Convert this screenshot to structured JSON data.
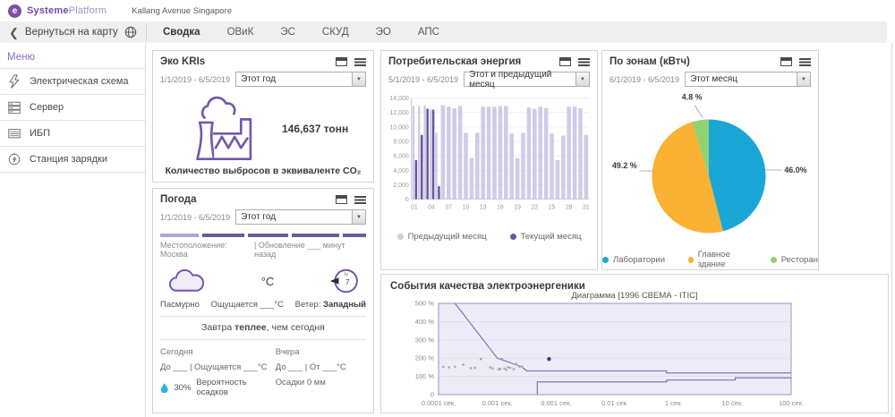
{
  "header": {
    "brand_bold": "Systeme",
    "brand_light": "Platform",
    "location": "Kallang Avenue Singapore",
    "back_label": "Вернуться на карту",
    "tabs": [
      "Сводка",
      "ОВиК",
      "ЭС",
      "СКУД",
      "ЭО",
      "АПС"
    ],
    "active_tab": "Сводка"
  },
  "sidebar": {
    "title": "Меню",
    "items": [
      {
        "label": "Электрическая схема"
      },
      {
        "label": "Сервер"
      },
      {
        "label": "ИБП"
      },
      {
        "label": "Станция зарядки"
      }
    ]
  },
  "cards": {
    "eco": {
      "title": "Эко KRIs",
      "date_range": "1/1/2019 - 6/5/2019",
      "period": "Этот год",
      "value": "146,637 тонн",
      "caption": "Количество выбросов в эквиваленте CO₂"
    },
    "energy": {
      "title": "Потребительская энергия",
      "date_range": "5/1/2019 - 6/5/2019",
      "period": "Этот и предыдущий месяц"
    },
    "zones": {
      "title": "По зонам (кВтч)",
      "date_range": "6/1/2019 - 6/5/2019",
      "period": "Этот месяц"
    },
    "weather": {
      "title": "Погода",
      "date_range": "1/1/2019 - 6/5/2019",
      "period": "Этот год",
      "location": "Местоположение: Москва",
      "update": "| Обновление ___ минут назад",
      "condition": "Пасмурно",
      "temp_unit": "°C",
      "feels": "Ощущается ___°C",
      "wind_label": "Ветер: ",
      "wind_value": "Западный",
      "compass_n": "N",
      "compass_value": "7",
      "tomorrow_pre": "Завтра ",
      "tomorrow_bold": "теплее",
      "tomorrow_post": ", чем сегодня",
      "today_label": "Сегодня",
      "yesterday_label": "Вчера",
      "today_range": "До ___   | Ощущается ___°C",
      "yesterday_range": "До ___   | От ___°C",
      "precip_chance": "30%",
      "precip_label": "Вероятность осадков",
      "precip_yesterday": "Осадки  0  мм"
    },
    "pq": {
      "title": "События качества электроэнергеники"
    }
  },
  "colors": {
    "accent_purple": "#6e4f9e",
    "bar_light": "#d1cbe8",
    "bar_dark": "#69569e",
    "pie_teal": "#1ba7d5",
    "pie_orange": "#f9b233",
    "pie_green": "#90d271",
    "droplet_teal": "#29b6d8"
  },
  "chart_data": [
    {
      "type": "bar",
      "title": "Потребительская энергия",
      "x_tick_labels": [
        "01",
        "04",
        "07",
        "10",
        "13",
        "16",
        "19",
        "22",
        "25",
        "28",
        "31"
      ],
      "y_ticks": [
        "0",
        "2,000",
        "4,000",
        "6,000",
        "8,000",
        "10,000",
        "12,000",
        "14,000"
      ],
      "ylim": [
        0,
        14000
      ],
      "series": [
        {
          "name": "Предыдущий месяц",
          "color": "#d1cbe8",
          "values": [
            12900,
            12850,
            12950,
            12400,
            9200,
            13000,
            12800,
            12600,
            12900,
            9200,
            5700,
            9200,
            12800,
            12800,
            12800,
            12900,
            12900,
            9100,
            5700,
            9200,
            12700,
            12500,
            12800,
            12600,
            9100,
            5400,
            8800,
            12800,
            12800,
            12600,
            8900
          ]
        },
        {
          "name": "Текущий месяц",
          "color": "#69569e",
          "values": [
            5400,
            8900,
            12500,
            12400,
            1800
          ]
        }
      ],
      "legend_position": "bottom"
    },
    {
      "type": "pie",
      "title": "По зонам (кВтч)",
      "slices": [
        {
          "label": "Лаборатории",
          "value": 46.0,
          "display": "46.0%",
          "color": "#1ba7d5"
        },
        {
          "label": "Главное здание",
          "value": 49.2,
          "display": "49.2 %",
          "color": "#f9b233"
        },
        {
          "label": "Ресторан",
          "value": 4.8,
          "display": "4.8 %",
          "color": "#90d271"
        }
      ],
      "legend_position": "bottom"
    },
    {
      "type": "line",
      "title": "Диаграмма [1996 СВЕМА - ITIC]",
      "x_ticks": [
        "0.0001 сек.",
        "0.001 сек.",
        "0.001 сек.",
        "0.01 сек.",
        "1 сек.",
        "10 сек.",
        "100 сек."
      ],
      "y_ticks": [
        "0",
        "100 %",
        "200 %",
        "300 %",
        "400 %",
        "500 %"
      ],
      "ylim": [
        0,
        500
      ],
      "x_axis_units": [
        0,
        6
      ],
      "upper_curve": [
        [
          0.28,
          500
        ],
        [
          1.0,
          200
        ],
        [
          1.42,
          152
        ],
        [
          1.5,
          130
        ],
        [
          3.88,
          130
        ],
        [
          3.88,
          119
        ],
        [
          6,
          119
        ]
      ],
      "lower_curve": [
        [
          1.68,
          0
        ],
        [
          1.68,
          70
        ],
        [
          3.88,
          70
        ],
        [
          3.88,
          80
        ],
        [
          5.05,
          80
        ],
        [
          5.05,
          92
        ],
        [
          6,
          92
        ]
      ],
      "scatter": [
        [
          0.08,
          152
        ],
        [
          0.18,
          150
        ],
        [
          0.28,
          153
        ],
        [
          0.42,
          164
        ],
        [
          0.55,
          145
        ],
        [
          0.62,
          147
        ],
        [
          0.72,
          195
        ],
        [
          0.88,
          150
        ],
        [
          0.92,
          144
        ],
        [
          1.02,
          138
        ],
        [
          1.08,
          196
        ],
        [
          1.12,
          143
        ],
        [
          1.18,
          150
        ],
        [
          1.22,
          147
        ],
        [
          1.28,
          140
        ],
        [
          1.32,
          168
        ],
        [
          1.38,
          152
        ],
        [
          1.42,
          155
        ],
        [
          1.15,
          135
        ],
        [
          1.05,
          141
        ]
      ],
      "highlight_point": [
        1.88,
        195
      ]
    }
  ]
}
